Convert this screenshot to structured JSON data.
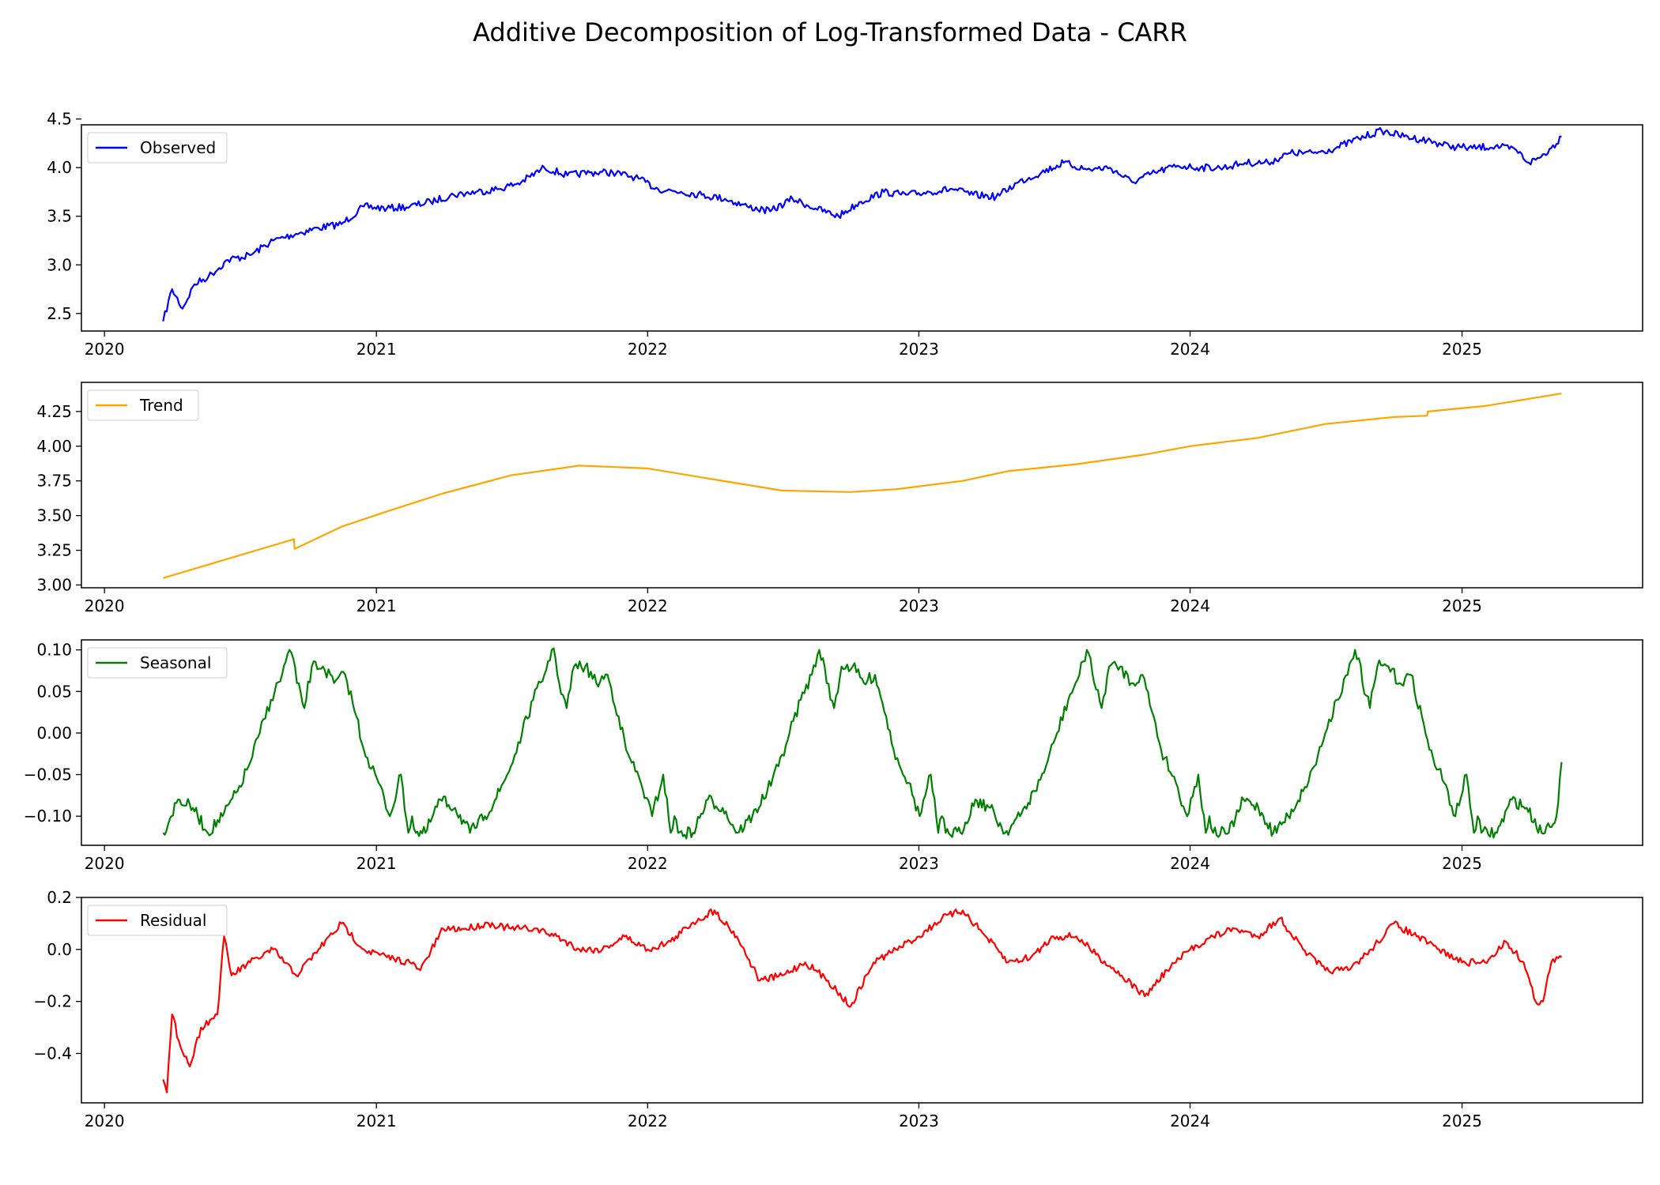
{
  "chart_data": {
    "type": "line",
    "title": "Additive Decomposition of Log-Transformed Data - CARR",
    "xlim": [
      "2019-12-01",
      "2025-09-01"
    ],
    "x_ticks": [
      "2020",
      "2021",
      "2022",
      "2023",
      "2024",
      "2025"
    ],
    "x_tick_dates": [
      "2020-01-01",
      "2021-01-01",
      "2022-01-01",
      "2023-01-01",
      "2024-01-01",
      "2025-01-01"
    ],
    "legend_position": "upper-left",
    "grid": false,
    "panels": [
      {
        "name": "Observed",
        "color": "#0000ff",
        "ylim": [
          2.32,
          4.44
        ],
        "y_ticks": [
          "2.5",
          "3.0",
          "3.5",
          "4.0",
          "4.5"
        ],
        "x": [
          "2020-03-20",
          "2020-04-01",
          "2020-04-15",
          "2020-05-01",
          "2020-05-20",
          "2020-06-15",
          "2020-07-15",
          "2020-08-15",
          "2020-09-15",
          "2020-10-15",
          "2020-11-15",
          "2020-12-15",
          "2021-01-15",
          "2021-02-15",
          "2021-03-15",
          "2021-04-15",
          "2021-05-15",
          "2021-06-15",
          "2021-07-15",
          "2021-08-15",
          "2021-09-15",
          "2021-10-15",
          "2021-11-15",
          "2021-12-15",
          "2022-01-15",
          "2022-02-15",
          "2022-03-15",
          "2022-04-15",
          "2022-05-15",
          "2022-06-15",
          "2022-07-15",
          "2022-08-15",
          "2022-09-15",
          "2022-10-15",
          "2022-11-15",
          "2022-12-15",
          "2023-01-15",
          "2023-02-15",
          "2023-03-15",
          "2023-04-15",
          "2023-05-15",
          "2023-06-15",
          "2023-07-15",
          "2023-08-15",
          "2023-09-15",
          "2023-10-15",
          "2023-11-15",
          "2023-12-15",
          "2024-01-15",
          "2024-02-15",
          "2024-03-15",
          "2024-04-15",
          "2024-05-15",
          "2024-06-15",
          "2024-07-15",
          "2024-08-15",
          "2024-09-15",
          "2024-10-15",
          "2024-11-15",
          "2024-12-15",
          "2025-01-15",
          "2025-02-15",
          "2025-03-15",
          "2025-04-01",
          "2025-04-15",
          "2025-05-01",
          "2025-05-15"
        ],
        "values": [
          2.42,
          2.75,
          2.55,
          2.8,
          2.88,
          3.05,
          3.1,
          3.25,
          3.32,
          3.38,
          3.42,
          3.6,
          3.58,
          3.6,
          3.65,
          3.72,
          3.75,
          3.78,
          3.85,
          4.0,
          3.92,
          3.95,
          3.95,
          3.9,
          3.78,
          3.75,
          3.72,
          3.68,
          3.6,
          3.55,
          3.68,
          3.58,
          3.5,
          3.65,
          3.75,
          3.72,
          3.75,
          3.78,
          3.72,
          3.7,
          3.85,
          3.95,
          4.05,
          3.98,
          4.0,
          3.85,
          3.95,
          4.02,
          4.0,
          4.0,
          4.05,
          4.05,
          4.15,
          4.15,
          4.2,
          4.3,
          4.38,
          4.32,
          4.28,
          4.22,
          4.2,
          4.22,
          4.18,
          4.05,
          4.1,
          4.2,
          4.32
        ]
      },
      {
        "name": "Trend",
        "color": "#ffa500",
        "ylim": [
          2.98,
          4.46
        ],
        "y_ticks": [
          "3.00",
          "3.25",
          "3.50",
          "3.75",
          "4.00",
          "4.25"
        ],
        "x": [
          "2020-03-20",
          "2020-09-12",
          "2020-09-13",
          "2020-11-15",
          "2021-01-15",
          "2021-04-01",
          "2021-07-01",
          "2021-10-01",
          "2022-01-01",
          "2022-04-01",
          "2022-07-01",
          "2022-10-01",
          "2022-12-01",
          "2023-03-01",
          "2023-05-01",
          "2023-08-01",
          "2023-11-01",
          "2024-01-01",
          "2024-04-01",
          "2024-07-01",
          "2024-10-01",
          "2024-11-15",
          "2024-11-16",
          "2025-02-01",
          "2025-05-15"
        ],
        "values": [
          3.05,
          3.33,
          3.26,
          3.42,
          3.53,
          3.66,
          3.79,
          3.86,
          3.84,
          3.76,
          3.68,
          3.67,
          3.69,
          3.75,
          3.82,
          3.87,
          3.94,
          4.0,
          4.06,
          4.16,
          4.21,
          4.22,
          4.25,
          4.29,
          4.38
        ]
      },
      {
        "name": "Seasonal",
        "color": "#008000",
        "ylim": [
          -0.135,
          0.112
        ],
        "y_ticks": [
          "0.10",
          "0.05",
          "0.00",
          "−0.05",
          "−0.10"
        ],
        "pattern_offsets_days": [
          0,
          20,
          40,
          60,
          80,
          100,
          115,
          130,
          145,
          160,
          170,
          175,
          180,
          190,
          200,
          215,
          230,
          245,
          260,
          270,
          275,
          290,
          305,
          320,
          330,
          335,
          340
        ],
        "pattern_values": [
          -0.12,
          -0.08,
          -0.09,
          -0.12,
          -0.1,
          -0.07,
          -0.04,
          0.0,
          0.04,
          0.07,
          0.1,
          0.09,
          0.06,
          0.03,
          0.08,
          0.08,
          0.06,
          0.07,
          0.02,
          -0.02,
          -0.03,
          -0.06,
          -0.1,
          -0.05,
          -0.12,
          -0.1,
          -0.12
        ],
        "cycle_starts": [
          "2020-03-20",
          "2021-03-08",
          "2022-03-03",
          "2023-02-26",
          "2024-02-22",
          "2025-02-17"
        ],
        "x_end": "2025-05-15",
        "end_value": -0.035
      },
      {
        "name": "Residual",
        "color": "#ff0000",
        "ylim": [
          -0.59,
          0.2
        ],
        "y_ticks": [
          "0.2",
          "0.0",
          "−0.2",
          "−0.4"
        ],
        "x": [
          "2020-03-20",
          "2020-03-25",
          "2020-04-01",
          "2020-04-10",
          "2020-04-25",
          "2020-05-10",
          "2020-06-01",
          "2020-06-10",
          "2020-06-20",
          "2020-07-15",
          "2020-08-15",
          "2020-09-15",
          "2020-10-15",
          "2020-11-15",
          "2020-12-15",
          "2021-01-15",
          "2021-02-15",
          "2021-03-01",
          "2021-04-01",
          "2021-05-01",
          "2021-06-01",
          "2021-07-01",
          "2021-08-01",
          "2021-09-01",
          "2021-10-01",
          "2021-11-01",
          "2021-12-01",
          "2022-01-01",
          "2022-02-01",
          "2022-03-01",
          "2022-04-01",
          "2022-05-01",
          "2022-06-01",
          "2022-07-01",
          "2022-08-01",
          "2022-09-01",
          "2022-10-01",
          "2022-11-01",
          "2022-12-01",
          "2023-01-01",
          "2023-02-01",
          "2023-03-01",
          "2023-04-01",
          "2023-05-01",
          "2023-06-01",
          "2023-07-01",
          "2023-08-01",
          "2023-09-01",
          "2023-10-01",
          "2023-11-01",
          "2023-12-01",
          "2024-01-01",
          "2024-02-01",
          "2024-03-01",
          "2024-04-01",
          "2024-05-01",
          "2024-06-01",
          "2024-07-01",
          "2024-08-01",
          "2024-09-01",
          "2024-10-01",
          "2024-11-01",
          "2024-12-01",
          "2025-01-01",
          "2025-02-01",
          "2025-03-01",
          "2025-03-25",
          "2025-04-10",
          "2025-04-20",
          "2025-05-01",
          "2025-05-15"
        ],
        "values": [
          -0.5,
          -0.55,
          -0.25,
          -0.35,
          -0.45,
          -0.3,
          -0.25,
          0.05,
          -0.1,
          -0.05,
          0.0,
          -0.1,
          0.0,
          0.1,
          0.0,
          -0.03,
          -0.05,
          -0.08,
          0.08,
          0.08,
          0.1,
          0.08,
          0.08,
          0.05,
          0.0,
          0.0,
          0.05,
          0.0,
          0.03,
          0.1,
          0.15,
          0.05,
          -0.12,
          -0.1,
          -0.05,
          -0.12,
          -0.22,
          -0.05,
          0.0,
          0.05,
          0.12,
          0.15,
          0.05,
          -0.05,
          -0.03,
          0.05,
          0.05,
          -0.03,
          -0.1,
          -0.18,
          -0.08,
          0.0,
          0.05,
          0.08,
          0.05,
          0.12,
          0.0,
          -0.08,
          -0.08,
          0.0,
          0.1,
          0.05,
          0.0,
          -0.05,
          -0.05,
          0.03,
          -0.05,
          -0.2,
          -0.2,
          -0.05,
          -0.03
        ]
      }
    ]
  }
}
